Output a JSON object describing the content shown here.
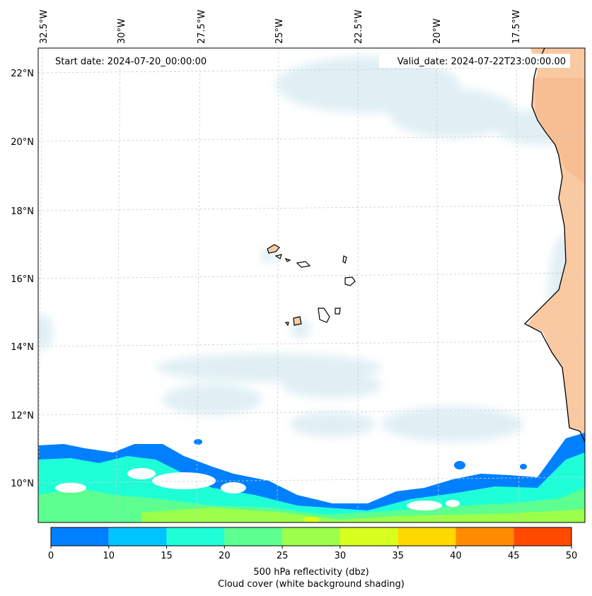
{
  "header": {
    "start_date": "Start date: 2024-07-20_00:00:00",
    "valid_date": "Valid_date: 2024-07-22T23:00:00.00"
  },
  "axes": {
    "longitude_labels": [
      "32.5°W",
      "30°W",
      "27.5°W",
      "25°W",
      "22.5°W",
      "20°W",
      "17.5°W"
    ],
    "latitude_labels": [
      "22°N",
      "20°N",
      "18°N",
      "16°N",
      "14°N",
      "12°N",
      "10°N"
    ],
    "grid": true
  },
  "colorbar": {
    "ticks": [
      "0",
      "10",
      "15",
      "20",
      "25",
      "30",
      "35",
      "40",
      "45",
      "50"
    ],
    "colors": [
      "#0080ff",
      "#00c4ff",
      "#1effd8",
      "#5cff90",
      "#9cff4a",
      "#d8ff1e",
      "#ffd800",
      "#ff8c00",
      "#ff4a00"
    ],
    "label_line1": "500 hPa reflectivity (dbz)",
    "label_line2": "Cloud cover (white background shading)"
  },
  "colors": {
    "land_orange": "#f9c9a2",
    "cloud_blue": "#d6eaf1",
    "coastline": "#000000",
    "grid": "#cccccc"
  }
}
